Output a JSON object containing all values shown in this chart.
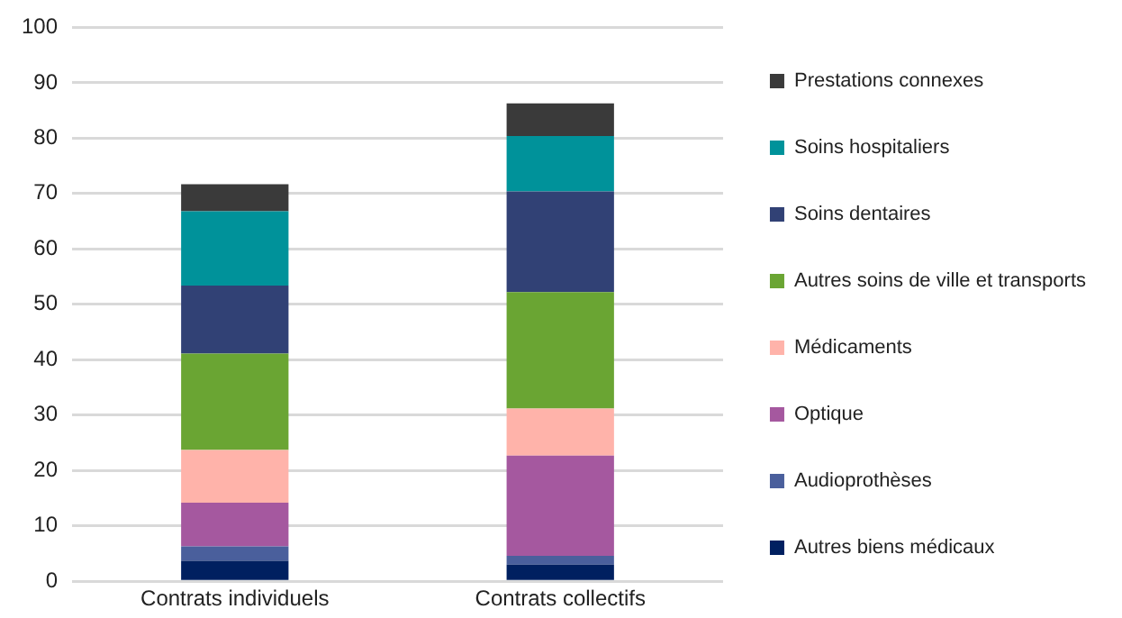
{
  "chart_data": {
    "type": "bar",
    "stacked": true,
    "categories": [
      "Contrats individuels",
      "Contrats collectifs"
    ],
    "series": [
      {
        "name": "Autres biens médicaux",
        "color": "#002060",
        "values": [
          3.7,
          3.0
        ]
      },
      {
        "name": "Audioprothèses",
        "color": "#4a5f9c",
        "values": [
          2.6,
          1.6
        ]
      },
      {
        "name": "Optique",
        "color": "#a5589f",
        "values": [
          7.9,
          18.1
        ]
      },
      {
        "name": "Médicaments",
        "color": "#ffb3aa",
        "values": [
          9.5,
          8.5
        ]
      },
      {
        "name": "Autres soins de ville et transports",
        "color": "#6aa533",
        "values": [
          17.4,
          21.0
        ]
      },
      {
        "name": "Soins dentaires",
        "color": "#314175",
        "values": [
          12.3,
          18.2
        ]
      },
      {
        "name": "Soins hospitaliers",
        "color": "#00929a",
        "values": [
          13.4,
          10.0
        ]
      },
      {
        "name": "Prestations connexes",
        "color": "#3a3a3a",
        "values": [
          4.9,
          5.9
        ]
      }
    ],
    "ylim": [
      0,
      100
    ],
    "yticks": [
      0,
      10,
      20,
      30,
      40,
      50,
      60,
      70,
      80,
      90,
      100
    ],
    "grid": "y",
    "legend": "right"
  }
}
